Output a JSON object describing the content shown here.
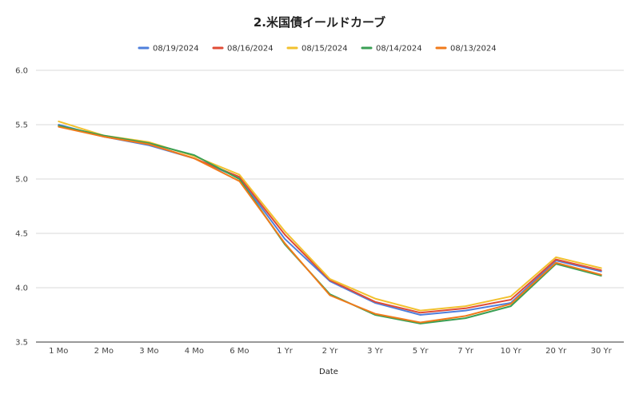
{
  "chart_data": {
    "type": "line",
    "title": "2.米国債イールドカーブ",
    "xlabel": "Date",
    "ylabel": "",
    "ylim": [
      3.5,
      6.0
    ],
    "yticks": [
      "3.5",
      "4.0",
      "4.5",
      "5.0",
      "5.5",
      "6.0"
    ],
    "ytick_values": [
      3.5,
      4.0,
      4.5,
      5.0,
      5.5,
      6.0
    ],
    "grid": true,
    "legend_position": "top",
    "categories": [
      "1 Mo",
      "2 Mo",
      "3 Mo",
      "4 Mo",
      "6 Mo",
      "1 Yr",
      "2 Yr",
      "3 Yr",
      "5 Yr",
      "7 Yr",
      "10 Yr",
      "20 Yr",
      "30 Yr"
    ],
    "series": [
      {
        "name": "08/19/2024",
        "color": "#4e7fdc",
        "values": [
          5.5,
          5.39,
          5.31,
          5.19,
          5.01,
          4.45,
          4.06,
          3.86,
          3.75,
          3.79,
          3.86,
          4.25,
          4.15
        ]
      },
      {
        "name": "08/16/2024",
        "color": "#e04b35",
        "values": [
          5.49,
          5.39,
          5.32,
          5.19,
          5.02,
          4.49,
          4.07,
          3.87,
          3.77,
          3.81,
          3.89,
          4.26,
          4.16
        ]
      },
      {
        "name": "08/15/2024",
        "color": "#f2c12e",
        "values": [
          5.53,
          5.4,
          5.34,
          5.21,
          5.04,
          4.52,
          4.08,
          3.9,
          3.79,
          3.83,
          3.92,
          4.28,
          4.18
        ]
      },
      {
        "name": "08/14/2024",
        "color": "#3a9f54",
        "values": [
          5.49,
          5.4,
          5.33,
          5.22,
          5.0,
          4.4,
          3.94,
          3.75,
          3.67,
          3.72,
          3.83,
          4.22,
          4.11
        ]
      },
      {
        "name": "08/13/2024",
        "color": "#f07a1a",
        "values": [
          5.48,
          5.39,
          5.32,
          5.19,
          4.98,
          4.41,
          3.93,
          3.76,
          3.68,
          3.74,
          3.85,
          4.23,
          4.12
        ]
      }
    ]
  }
}
